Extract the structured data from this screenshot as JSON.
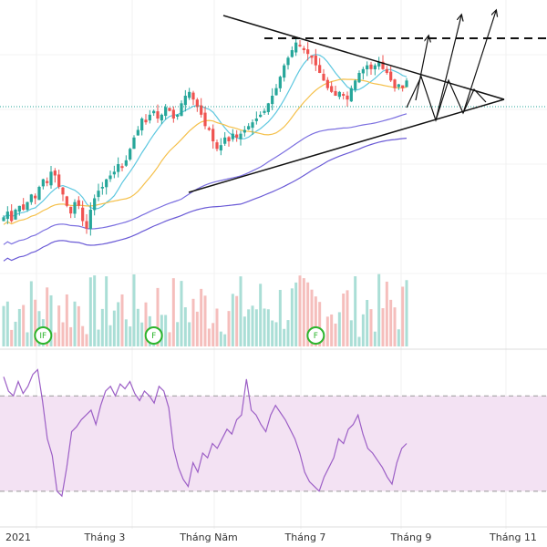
{
  "chart_data": [
    {
      "type": "candlestick",
      "description_role": "price",
      "x_ticks": [
        "2021",
        "Tháng 3",
        "Tháng Năm",
        "Tháng 7",
        "Tháng 9",
        "Tháng 11"
      ],
      "colors": {
        "up": "#26a69a",
        "down": "#ef5350",
        "ma_fast": "#5ec8e0",
        "ma_mid": "#f5c04a",
        "ma_slow_1": "#7b6fe0",
        "ma_slow_2": "#6a5ad6",
        "price_line": "#26a69a",
        "trend_line": "#111111"
      },
      "grid": true,
      "annotations": {
        "symmetrical_triangle": true,
        "dashed_resistance": true,
        "upward_arrows": 3,
        "zigzag_projection": true
      },
      "closes": [
        32,
        33.5,
        31,
        34,
        35,
        34,
        36,
        38,
        37,
        40,
        42,
        41,
        44,
        43,
        40,
        38,
        35,
        33,
        36,
        35,
        31,
        29,
        34,
        37,
        39,
        40,
        42,
        43,
        44,
        46,
        45,
        47,
        50,
        53,
        55,
        58,
        57,
        59,
        60,
        58,
        59,
        61,
        60,
        58,
        59,
        62,
        64,
        65,
        63,
        61,
        59,
        56,
        55,
        52,
        50,
        51,
        53,
        52,
        54,
        53,
        54,
        55,
        56,
        57,
        58,
        59,
        60,
        62,
        64,
        66,
        69,
        72,
        74,
        76,
        78,
        77,
        76,
        75,
        74,
        72,
        70,
        68,
        66,
        65,
        64,
        65,
        64,
        63,
        66,
        68,
        70,
        71,
        72,
        71,
        72,
        73,
        71,
        70,
        68,
        66,
        67,
        66,
        68
      ]
    },
    {
      "type": "volume",
      "up_color": "#9bd8cf",
      "down_color": "#f3b3b0",
      "markers": [
        {
          "label": "IF",
          "index": 10
        },
        {
          "label": "F",
          "index": 38
        },
        {
          "label": "F",
          "index": 79
        }
      ]
    },
    {
      "type": "oscillator",
      "line_color": "#9c5fc6",
      "band_fill": "#f3e2f3",
      "band_upper": 70,
      "band_lower": 30,
      "ylim": [
        20,
        85
      ],
      "values": [
        78,
        72,
        70,
        76,
        71,
        74,
        79,
        81,
        68,
        52,
        45,
        30,
        28,
        40,
        55,
        57,
        60,
        62,
        64,
        58,
        66,
        72,
        74,
        70,
        75,
        73,
        76,
        71,
        68,
        72,
        70,
        67,
        74,
        72,
        65,
        48,
        40,
        35,
        32,
        42,
        38,
        46,
        44,
        50,
        48,
        52,
        56,
        54,
        60,
        62,
        77,
        64,
        62,
        58,
        55,
        62,
        66,
        63,
        60,
        56,
        52,
        46,
        38,
        34,
        32,
        30,
        36,
        40,
        44,
        52,
        50,
        56,
        58,
        62,
        54,
        48,
        46,
        43,
        40,
        36,
        33,
        42,
        48,
        50
      ]
    }
  ]
}
